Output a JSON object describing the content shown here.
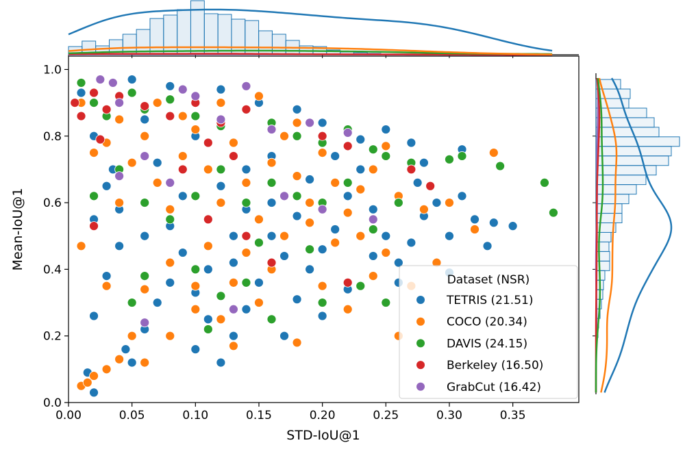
{
  "chart_data": {
    "type": "scatter",
    "title": "",
    "xlabel": "STD-IoU@1",
    "ylabel": "Mean-IoU@1",
    "xlim": [
      0,
      0.402
    ],
    "ylim": [
      0,
      1.04
    ],
    "xticks": [
      "0.00",
      "0.05",
      "0.10",
      "0.15",
      "0.20",
      "0.25",
      "0.30",
      "0.35"
    ],
    "yticks": [
      "0.0",
      "0.2",
      "0.4",
      "0.6",
      "0.8",
      "1.0"
    ],
    "grid": false,
    "legend": {
      "title": "Dataset (NSR)",
      "placement": "lower-right"
    },
    "series": [
      {
        "name": "TETRIS (21.51)",
        "color": "#1f77b4",
        "points": [
          [
            0.01,
            0.93
          ],
          [
            0.02,
            0.8
          ],
          [
            0.03,
            0.65
          ],
          [
            0.02,
            0.55
          ],
          [
            0.04,
            0.47
          ],
          [
            0.03,
            0.38
          ],
          [
            0.02,
            0.26
          ],
          [
            0.02,
            0.03
          ],
          [
            0.05,
            0.12
          ],
          [
            0.06,
            0.22
          ],
          [
            0.07,
            0.3
          ],
          [
            0.08,
            0.36
          ],
          [
            0.06,
            0.5
          ],
          [
            0.09,
            0.45
          ],
          [
            0.1,
            0.33
          ],
          [
            0.11,
            0.25
          ],
          [
            0.12,
            0.12
          ],
          [
            0.13,
            0.2
          ],
          [
            0.14,
            0.28
          ],
          [
            0.15,
            0.36
          ],
          [
            0.13,
            0.42
          ],
          [
            0.11,
            0.55
          ],
          [
            0.09,
            0.62
          ],
          [
            0.07,
            0.72
          ],
          [
            0.12,
            0.65
          ],
          [
            0.14,
            0.58
          ],
          [
            0.16,
            0.5
          ],
          [
            0.17,
            0.44
          ],
          [
            0.18,
            0.31
          ],
          [
            0.2,
            0.26
          ],
          [
            0.19,
            0.4
          ],
          [
            0.21,
            0.52
          ],
          [
            0.22,
            0.62
          ],
          [
            0.23,
            0.7
          ],
          [
            0.24,
            0.58
          ],
          [
            0.25,
            0.5
          ],
          [
            0.26,
            0.42
          ],
          [
            0.27,
            0.48
          ],
          [
            0.28,
            0.56
          ],
          [
            0.29,
            0.6
          ],
          [
            0.3,
            0.5
          ],
          [
            0.31,
            0.62
          ],
          [
            0.32,
            0.55
          ],
          [
            0.335,
            0.54
          ],
          [
            0.35,
            0.53
          ],
          [
            0.33,
            0.47
          ],
          [
            0.28,
            0.72
          ],
          [
            0.27,
            0.78
          ],
          [
            0.25,
            0.82
          ],
          [
            0.23,
            0.79
          ],
          [
            0.2,
            0.84
          ],
          [
            0.18,
            0.88
          ],
          [
            0.15,
            0.9
          ],
          [
            0.12,
            0.94
          ],
          [
            0.08,
            0.95
          ],
          [
            0.05,
            0.97
          ],
          [
            0.16,
            0.74
          ],
          [
            0.19,
            0.67
          ],
          [
            0.1,
            0.8
          ],
          [
            0.06,
            0.85
          ],
          [
            0.04,
            0.58
          ],
          [
            0.035,
            0.7
          ],
          [
            0.22,
            0.34
          ],
          [
            0.24,
            0.44
          ],
          [
            0.17,
            0.2
          ],
          [
            0.1,
            0.16
          ],
          [
            0.045,
            0.16
          ],
          [
            0.015,
            0.09
          ],
          [
            0.16,
            0.6
          ],
          [
            0.13,
            0.5
          ],
          [
            0.3,
            0.39
          ],
          [
            0.26,
            0.36
          ],
          [
            0.2,
            0.46
          ],
          [
            0.11,
            0.4
          ],
          [
            0.08,
            0.53
          ],
          [
            0.18,
            0.56
          ],
          [
            0.21,
            0.74
          ],
          [
            0.14,
            0.7
          ],
          [
            0.275,
            0.66
          ],
          [
            0.31,
            0.76
          ]
        ]
      },
      {
        "name": "COCO (20.34)",
        "color": "#ff7f0e",
        "points": [
          [
            0.01,
            0.9
          ],
          [
            0.02,
            0.75
          ],
          [
            0.01,
            0.05
          ],
          [
            0.02,
            0.08
          ],
          [
            0.015,
            0.06
          ],
          [
            0.03,
            0.1
          ],
          [
            0.04,
            0.13
          ],
          [
            0.06,
            0.12
          ],
          [
            0.03,
            0.35
          ],
          [
            0.01,
            0.47
          ],
          [
            0.04,
            0.6
          ],
          [
            0.05,
            0.72
          ],
          [
            0.06,
            0.8
          ],
          [
            0.07,
            0.66
          ],
          [
            0.08,
            0.58
          ],
          [
            0.09,
            0.74
          ],
          [
            0.1,
            0.82
          ],
          [
            0.11,
            0.7
          ],
          [
            0.12,
            0.6
          ],
          [
            0.13,
            0.78
          ],
          [
            0.14,
            0.66
          ],
          [
            0.15,
            0.55
          ],
          [
            0.16,
            0.72
          ],
          [
            0.17,
            0.8
          ],
          [
            0.18,
            0.68
          ],
          [
            0.19,
            0.6
          ],
          [
            0.2,
            0.75
          ],
          [
            0.21,
            0.66
          ],
          [
            0.22,
            0.57
          ],
          [
            0.23,
            0.64
          ],
          [
            0.24,
            0.7
          ],
          [
            0.25,
            0.77
          ],
          [
            0.26,
            0.62
          ],
          [
            0.28,
            0.58
          ],
          [
            0.3,
            0.6
          ],
          [
            0.335,
            0.75
          ],
          [
            0.32,
            0.52
          ],
          [
            0.29,
            0.42
          ],
          [
            0.27,
            0.35
          ],
          [
            0.26,
            0.2
          ],
          [
            0.24,
            0.38
          ],
          [
            0.22,
            0.28
          ],
          [
            0.2,
            0.35
          ],
          [
            0.18,
            0.18
          ],
          [
            0.13,
            0.17
          ],
          [
            0.12,
            0.25
          ],
          [
            0.1,
            0.35
          ],
          [
            0.08,
            0.42
          ],
          [
            0.06,
            0.34
          ],
          [
            0.05,
            0.2
          ],
          [
            0.14,
            0.45
          ],
          [
            0.16,
            0.4
          ],
          [
            0.11,
            0.47
          ],
          [
            0.09,
            0.86
          ],
          [
            0.12,
            0.9
          ],
          [
            0.15,
            0.92
          ],
          [
            0.18,
            0.84
          ],
          [
            0.2,
            0.8
          ],
          [
            0.07,
            0.9
          ],
          [
            0.04,
            0.85
          ],
          [
            0.03,
            0.78
          ],
          [
            0.17,
            0.5
          ],
          [
            0.19,
            0.54
          ],
          [
            0.21,
            0.48
          ],
          [
            0.23,
            0.5
          ],
          [
            0.25,
            0.45
          ],
          [
            0.13,
            0.36
          ],
          [
            0.1,
            0.28
          ],
          [
            0.15,
            0.3
          ],
          [
            0.08,
            0.2
          ]
        ]
      },
      {
        "name": "DAVIS (24.15)",
        "color": "#2ca02c",
        "points": [
          [
            0.01,
            0.96
          ],
          [
            0.02,
            0.9
          ],
          [
            0.03,
            0.86
          ],
          [
            0.05,
            0.93
          ],
          [
            0.06,
            0.88
          ],
          [
            0.08,
            0.91
          ],
          [
            0.1,
            0.86
          ],
          [
            0.12,
            0.83
          ],
          [
            0.14,
            0.88
          ],
          [
            0.16,
            0.84
          ],
          [
            0.18,
            0.8
          ],
          [
            0.2,
            0.78
          ],
          [
            0.22,
            0.82
          ],
          [
            0.24,
            0.76
          ],
          [
            0.25,
            0.74
          ],
          [
            0.27,
            0.72
          ],
          [
            0.3,
            0.73
          ],
          [
            0.31,
            0.74
          ],
          [
            0.375,
            0.66
          ],
          [
            0.382,
            0.57
          ],
          [
            0.34,
            0.71
          ],
          [
            0.26,
            0.6
          ],
          [
            0.22,
            0.66
          ],
          [
            0.2,
            0.6
          ],
          [
            0.18,
            0.62
          ],
          [
            0.16,
            0.66
          ],
          [
            0.14,
            0.6
          ],
          [
            0.12,
            0.7
          ],
          [
            0.1,
            0.62
          ],
          [
            0.08,
            0.55
          ],
          [
            0.06,
            0.6
          ],
          [
            0.05,
            0.3
          ],
          [
            0.06,
            0.38
          ],
          [
            0.1,
            0.4
          ],
          [
            0.12,
            0.32
          ],
          [
            0.14,
            0.36
          ],
          [
            0.16,
            0.42
          ],
          [
            0.11,
            0.22
          ],
          [
            0.16,
            0.25
          ],
          [
            0.2,
            0.3
          ],
          [
            0.23,
            0.35
          ],
          [
            0.25,
            0.3
          ],
          [
            0.24,
            0.52
          ],
          [
            0.15,
            0.48
          ],
          [
            0.19,
            0.46
          ],
          [
            0.04,
            0.7
          ],
          [
            0.02,
            0.62
          ]
        ]
      },
      {
        "name": "Berkeley (16.50)",
        "color": "#d62728",
        "points": [
          [
            0.005,
            0.9
          ],
          [
            0.01,
            0.86
          ],
          [
            0.02,
            0.93
          ],
          [
            0.03,
            0.88
          ],
          [
            0.04,
            0.92
          ],
          [
            0.06,
            0.89
          ],
          [
            0.08,
            0.86
          ],
          [
            0.1,
            0.9
          ],
          [
            0.12,
            0.84
          ],
          [
            0.14,
            0.88
          ],
          [
            0.16,
            0.82
          ],
          [
            0.11,
            0.78
          ],
          [
            0.09,
            0.7
          ],
          [
            0.13,
            0.74
          ],
          [
            0.2,
            0.8
          ],
          [
            0.22,
            0.77
          ],
          [
            0.27,
            0.7
          ],
          [
            0.285,
            0.65
          ],
          [
            0.02,
            0.53
          ],
          [
            0.11,
            0.55
          ],
          [
            0.14,
            0.5
          ],
          [
            0.16,
            0.42
          ],
          [
            0.22,
            0.36
          ],
          [
            0.025,
            0.79
          ]
        ]
      },
      {
        "name": "GrabCut (16.42)",
        "color": "#9467bd",
        "points": [
          [
            0.025,
            0.97
          ],
          [
            0.035,
            0.96
          ],
          [
            0.04,
            0.9
          ],
          [
            0.06,
            0.74
          ],
          [
            0.08,
            0.66
          ],
          [
            0.09,
            0.94
          ],
          [
            0.1,
            0.92
          ],
          [
            0.12,
            0.85
          ],
          [
            0.14,
            0.95
          ],
          [
            0.16,
            0.82
          ],
          [
            0.19,
            0.84
          ],
          [
            0.22,
            0.81
          ],
          [
            0.17,
            0.62
          ],
          [
            0.2,
            0.58
          ],
          [
            0.24,
            0.55
          ],
          [
            0.06,
            0.24
          ],
          [
            0.13,
            0.28
          ],
          [
            0.04,
            0.68
          ]
        ]
      }
    ],
    "marginal_x_hist": {
      "series": "TETRIS (21.51)",
      "bin_start": 0.0,
      "bin_width": 0.0107,
      "relative_counts": [
        12,
        20,
        13,
        22,
        30,
        37,
        53,
        58,
        66,
        79,
        60,
        59,
        52,
        50,
        35,
        30,
        21,
        13,
        12,
        7,
        4,
        3,
        2,
        1,
        1
      ]
    },
    "marginal_y_hist": {
      "series": "TETRIS (21.51)",
      "bin_top": 0.97,
      "bin_width": 0.0287,
      "relative_counts": [
        36,
        50,
        48,
        74,
        85,
        92,
        122,
        110,
        106,
        88,
        73,
        59,
        48,
        38,
        38,
        29,
        22,
        19,
        20,
        20,
        13,
        11,
        10,
        8,
        6,
        4,
        3
      ]
    }
  }
}
